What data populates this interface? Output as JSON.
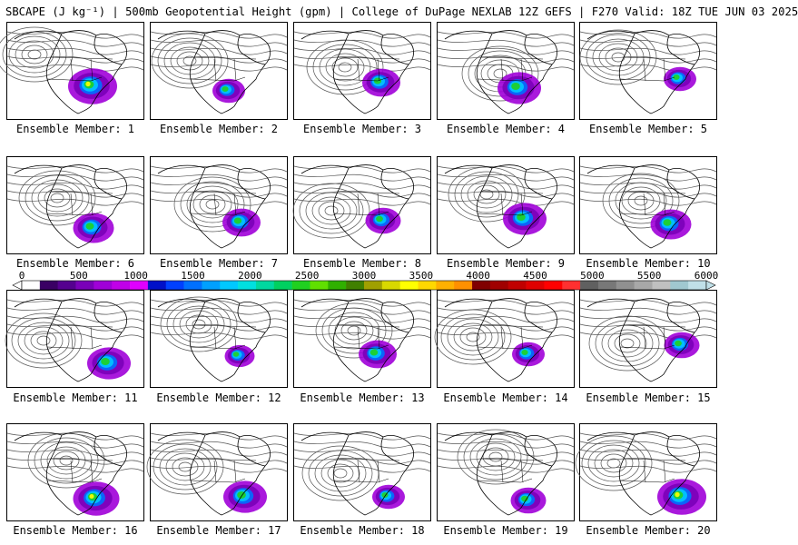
{
  "title": "SBCAPE (J kg⁻¹) | 500mb Geopotential Height (gpm) | College of DuPage NEXLAB 12Z GEFS | F270 Valid: 18Z TUE JUN 03 2025",
  "members": [
    {
      "label": "Ensemble Member: 1",
      "blob": [
        94,
        70,
        0.9
      ]
    },
    {
      "label": "Ensemble Member: 2",
      "blob": [
        86,
        75,
        0.6
      ]
    },
    {
      "label": "Ensemble Member: 3",
      "blob": [
        96,
        66,
        0.7
      ]
    },
    {
      "label": "Ensemble Member: 4",
      "blob": [
        90,
        72,
        0.8
      ]
    },
    {
      "label": "Ensemble Member: 5",
      "blob": [
        110,
        62,
        0.6
      ]
    },
    {
      "label": "Ensemble Member: 6",
      "blob": [
        95,
        78,
        0.75
      ]
    },
    {
      "label": "Ensemble Member: 7",
      "blob": [
        100,
        72,
        0.7
      ]
    },
    {
      "label": "Ensemble Member: 8",
      "blob": [
        98,
        70,
        0.65
      ]
    },
    {
      "label": "Ensemble Member: 9",
      "blob": [
        96,
        68,
        0.8
      ]
    },
    {
      "label": "Ensemble Member: 10",
      "blob": [
        100,
        74,
        0.75
      ]
    },
    {
      "label": "Ensemble Member: 11",
      "blob": [
        112,
        80,
        0.8
      ]
    },
    {
      "label": "Ensemble Member: 12",
      "blob": [
        98,
        72,
        0.55
      ]
    },
    {
      "label": "Ensemble Member: 13",
      "blob": [
        92,
        70,
        0.7
      ]
    },
    {
      "label": "Ensemble Member: 14",
      "blob": [
        100,
        70,
        0.6
      ]
    },
    {
      "label": "Ensemble Member: 15",
      "blob": [
        112,
        60,
        0.65
      ]
    },
    {
      "label": "Ensemble Member: 16",
      "blob": [
        98,
        82,
        0.85
      ]
    },
    {
      "label": "Ensemble Member: 17",
      "blob": [
        104,
        80,
        0.8
      ]
    },
    {
      "label": "Ensemble Member: 18",
      "blob": [
        104,
        80,
        0.6
      ]
    },
    {
      "label": "Ensemble Member: 19",
      "blob": [
        100,
        84,
        0.65
      ]
    },
    {
      "label": "Ensemble Member: 20",
      "blob": [
        112,
        80,
        0.9
      ]
    }
  ],
  "colorbar": {
    "ticks": [
      "0",
      "500",
      "1000",
      "1500",
      "2000",
      "2500",
      "3000",
      "3500",
      "4000",
      "4500",
      "5000",
      "5500",
      "6000"
    ],
    "colors": [
      "#ffffff",
      "#3a0064",
      "#55008f",
      "#7a00b8",
      "#a000d8",
      "#c000e8",
      "#e000ff",
      "#0010c8",
      "#0040ff",
      "#0070ff",
      "#00a0ff",
      "#00c8ff",
      "#00e0e0",
      "#00d8a0",
      "#00d060",
      "#20d020",
      "#60e000",
      "#30b000",
      "#408000",
      "#a0a000",
      "#d8d800",
      "#ffff00",
      "#ffd800",
      "#ffb000",
      "#ff9000",
      "#800000",
      "#a00000",
      "#c00000",
      "#e00000",
      "#ff0000",
      "#ff3030",
      "#606060",
      "#787878",
      "#909090",
      "#a8a8a8",
      "#c0c0c0",
      "#a0c8d0",
      "#c0e0e8"
    ]
  }
}
